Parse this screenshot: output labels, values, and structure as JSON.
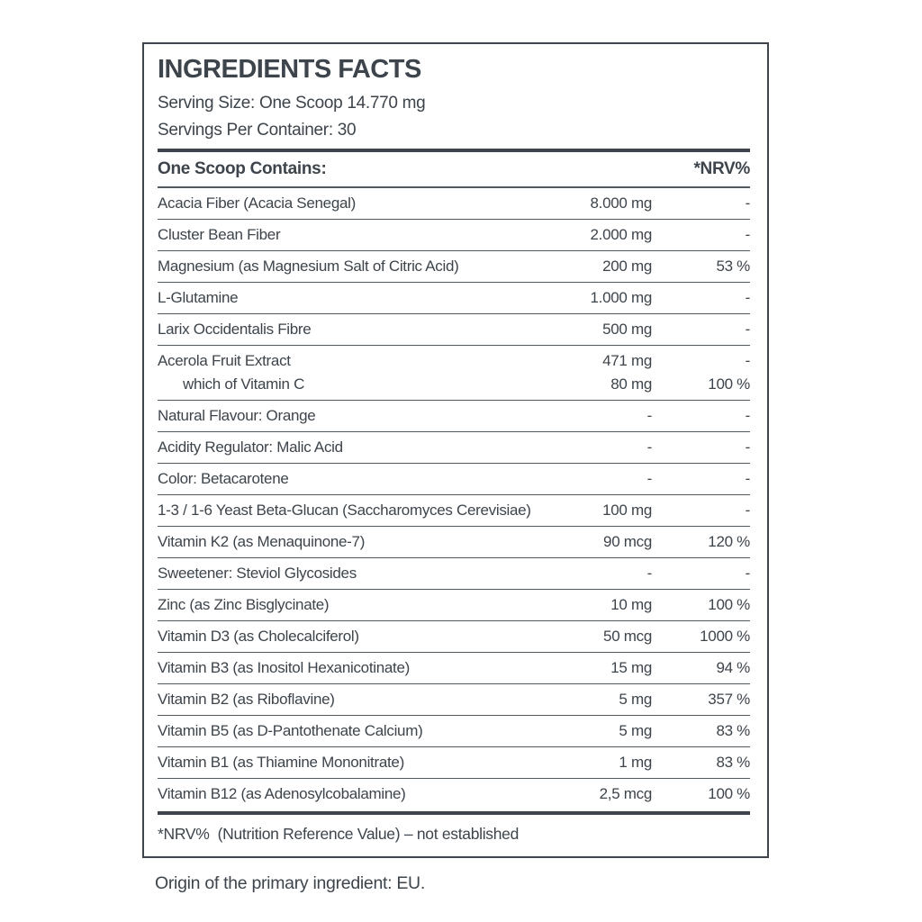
{
  "colors": {
    "ink": "#3d444b",
    "divider": "#51585e",
    "background": "#ffffff"
  },
  "panel": {
    "title": "INGREDIENTS FACTS",
    "serving_size": "Serving Size: One Scoop 14.770 mg",
    "servings_per_container": "Servings Per Container: 30",
    "table": {
      "header": {
        "contains": "One Scoop Contains:",
        "nrv": "*NRV%"
      },
      "rows": [
        {
          "lines": [
            {
              "name": "Acacia Fiber (Acacia Senegal)",
              "amount": "8.000 mg",
              "nrv": "-"
            }
          ]
        },
        {
          "lines": [
            {
              "name": "Cluster Bean Fiber",
              "amount": "2.000 mg",
              "nrv": "-"
            }
          ]
        },
        {
          "lines": [
            {
              "name": "Magnesium (as Magnesium Salt of Citric Acid)",
              "amount": "200 mg",
              "nrv": "53 %"
            }
          ]
        },
        {
          "lines": [
            {
              "name": "L-Glutamine",
              "amount": "1.000 mg",
              "nrv": "-"
            }
          ]
        },
        {
          "lines": [
            {
              "name": "Larix Occidentalis Fibre",
              "amount": "500 mg",
              "nrv": "-"
            }
          ]
        },
        {
          "lines": [
            {
              "name": "Acerola Fruit Extract",
              "amount": "471 mg",
              "nrv": "-"
            },
            {
              "name": "which of Vitamin C",
              "amount": "80 mg",
              "nrv": "100 %",
              "indent": true
            }
          ]
        },
        {
          "lines": [
            {
              "name": "Natural Flavour: Orange",
              "amount": "-",
              "nrv": "-"
            }
          ]
        },
        {
          "lines": [
            {
              "name": "Acidity Regulator: Malic Acid",
              "amount": "-",
              "nrv": "-"
            }
          ]
        },
        {
          "lines": [
            {
              "name": "Color: Betacarotene",
              "amount": "-",
              "nrv": "-"
            }
          ]
        },
        {
          "lines": [
            {
              "name": "1-3 / 1-6 Yeast Beta-Glucan (Saccharomyces Cerevisiae)",
              "amount": "100 mg",
              "nrv": "-"
            }
          ]
        },
        {
          "lines": [
            {
              "name": "Vitamin K2 (as Menaquinone-7)",
              "amount": "90 mcg",
              "nrv": "120 %"
            }
          ]
        },
        {
          "lines": [
            {
              "name": "Sweetener: Steviol Glycosides",
              "amount": "-",
              "nrv": "-"
            }
          ]
        },
        {
          "lines": [
            {
              "name": "Zinc (as Zinc Bisglycinate)",
              "amount": "10 mg",
              "nrv": "100 %"
            }
          ]
        },
        {
          "lines": [
            {
              "name": "Vitamin D3 (as Cholecalciferol)",
              "amount": "50 mcg",
              "nrv": "1000 %"
            }
          ]
        },
        {
          "lines": [
            {
              "name": "Vitamin B3 (as Inositol Hexanicotinate)",
              "amount": "15 mg",
              "nrv": "94 %"
            }
          ]
        },
        {
          "lines": [
            {
              "name": "Vitamin B2 (as Riboflavine)",
              "amount": "5 mg",
              "nrv": "357 %"
            }
          ]
        },
        {
          "lines": [
            {
              "name": "Vitamin B5 (as D-Pantothenate Calcium)",
              "amount": "5 mg",
              "nrv": "83 %"
            }
          ]
        },
        {
          "lines": [
            {
              "name": "Vitamin B1 (as Thiamine Mononitrate)",
              "amount": "1 mg",
              "nrv": "83 %"
            }
          ]
        },
        {
          "lines": [
            {
              "name": "Vitamin B12 (as Adenosylcobalamine)",
              "amount": "2,5 mcg",
              "nrv": "100 %"
            }
          ]
        }
      ]
    },
    "footnote": "*NRV%  (Nutrition Reference Value) – not established"
  },
  "origin_note": "Origin of the primary ingredient: EU."
}
